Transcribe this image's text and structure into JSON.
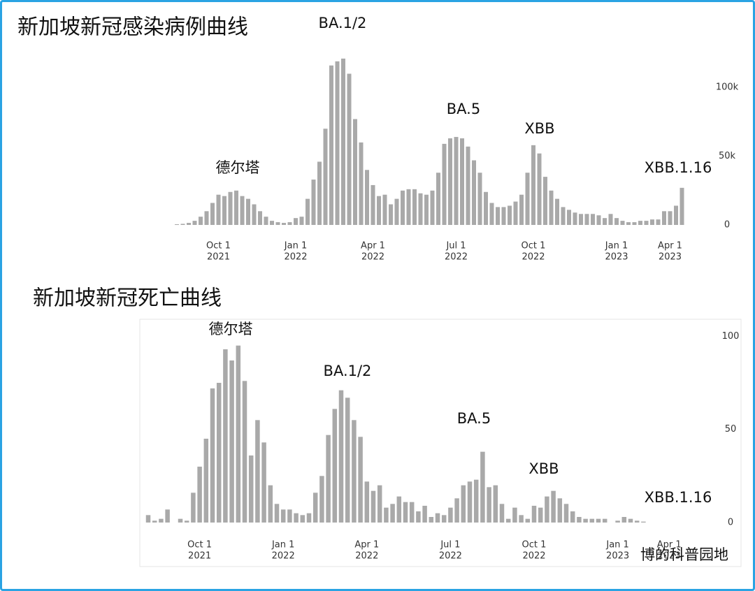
{
  "chart_data": [
    {
      "type": "bar",
      "title": "新加坡新冠感染病例曲线",
      "color": "#a9a9a9",
      "annotations": [
        "德尔塔",
        "BA.1/2",
        "BA.5",
        "XBB",
        "XBB.1.16"
      ],
      "categories": [
        null,
        null,
        null,
        null,
        null,
        null,
        null,
        [
          "Oct 1",
          "2021"
        ],
        null,
        null,
        null,
        null,
        null,
        null,
        null,
        null,
        null,
        null,
        null,
        null,
        [
          "Jan 1",
          "2022"
        ],
        null,
        null,
        null,
        null,
        null,
        null,
        null,
        null,
        null,
        null,
        null,
        null,
        [
          "Apr 1",
          "2022"
        ],
        null,
        null,
        null,
        null,
        null,
        null,
        null,
        null,
        null,
        null,
        null,
        null,
        null,
        [
          "Jul 1",
          "2022"
        ],
        null,
        null,
        null,
        null,
        null,
        null,
        null,
        null,
        null,
        null,
        null,
        null,
        [
          "Oct 1",
          "2022"
        ],
        null,
        null,
        null,
        null,
        null,
        null,
        null,
        null,
        null,
        null,
        null,
        null,
        null,
        [
          "Jan 1",
          "2023"
        ],
        null,
        null,
        null,
        null,
        null,
        null,
        null,
        null,
        [
          "Apr 1",
          "2023"
        ],
        null,
        null
      ],
      "values": [
        500,
        800,
        1500,
        3000,
        6000,
        10000,
        16000,
        22000,
        21000,
        24000,
        25000,
        21000,
        19000,
        15000,
        10000,
        6000,
        3000,
        2000,
        1500,
        2000,
        5000,
        6000,
        19000,
        33000,
        46000,
        70000,
        116000,
        119000,
        121000,
        110000,
        77000,
        60000,
        40000,
        29000,
        21000,
        22000,
        15000,
        19000,
        25000,
        26000,
        26000,
        23000,
        22000,
        25000,
        38000,
        59000,
        63000,
        64000,
        63000,
        57000,
        47000,
        38000,
        24000,
        16000,
        13000,
        13000,
        14000,
        17000,
        22000,
        38000,
        58000,
        52000,
        35000,
        25000,
        19000,
        13000,
        11000,
        9000,
        8000,
        8000,
        8000,
        7000,
        5000,
        8000,
        5000,
        3000,
        2000,
        2000,
        3000,
        3000,
        4000,
        4000,
        10000,
        10000,
        14000,
        27000
      ],
      "ylim": [
        0,
        125000
      ],
      "yticks": [
        0,
        {
          "value": 50000,
          "label": "50k"
        },
        {
          "value": 100000,
          "label": "100k"
        }
      ]
    },
    {
      "type": "bar",
      "title": "新加坡新冠死亡曲线",
      "color": "#a9a9a9",
      "annotations": [
        "德尔塔",
        "BA.1/2",
        "BA.5",
        "XBB",
        "XBB.1.16"
      ],
      "categories": [
        null,
        null,
        null,
        null,
        null,
        null,
        null,
        null,
        [
          "Oct 1",
          "2021"
        ],
        null,
        null,
        null,
        null,
        null,
        null,
        null,
        null,
        null,
        null,
        null,
        null,
        [
          "Jan 1",
          "2022"
        ],
        null,
        null,
        null,
        null,
        null,
        null,
        null,
        null,
        null,
        null,
        null,
        null,
        [
          "Apr 1",
          "2022"
        ],
        null,
        null,
        null,
        null,
        null,
        null,
        null,
        null,
        null,
        null,
        null,
        null,
        [
          "Jul 1",
          "2022"
        ],
        null,
        null,
        null,
        null,
        null,
        null,
        null,
        null,
        null,
        null,
        null,
        null,
        [
          "Oct 1",
          "2022"
        ],
        null,
        null,
        null,
        null,
        null,
        null,
        null,
        null,
        null,
        null,
        null,
        null,
        [
          "Jan 1",
          "2023"
        ],
        null,
        null,
        null,
        null,
        null,
        null,
        null,
        [
          "Apr 1",
          "2023"
        ]
      ],
      "values": [
        4,
        1,
        2,
        7,
        0,
        2,
        1,
        16,
        30,
        45,
        72,
        75,
        93,
        87,
        95,
        76,
        36,
        55,
        43,
        20,
        10,
        7,
        7,
        5,
        4,
        5,
        16,
        25,
        47,
        61,
        71,
        67,
        55,
        46,
        22,
        17,
        20,
        8,
        10,
        14,
        11,
        11,
        6,
        9,
        3,
        5,
        4,
        8,
        13,
        20,
        22,
        23,
        38,
        19,
        20,
        10,
        2,
        8,
        4,
        2,
        9,
        8,
        14,
        17,
        13,
        10,
        6,
        3,
        2,
        2,
        2,
        2,
        0,
        1,
        3,
        2,
        1,
        0.5,
        null,
        null,
        null,
        null
      ],
      "ylim": [
        0,
        105
      ],
      "yticks": [
        0,
        50,
        100
      ]
    }
  ],
  "watermark": "博的科普园地"
}
